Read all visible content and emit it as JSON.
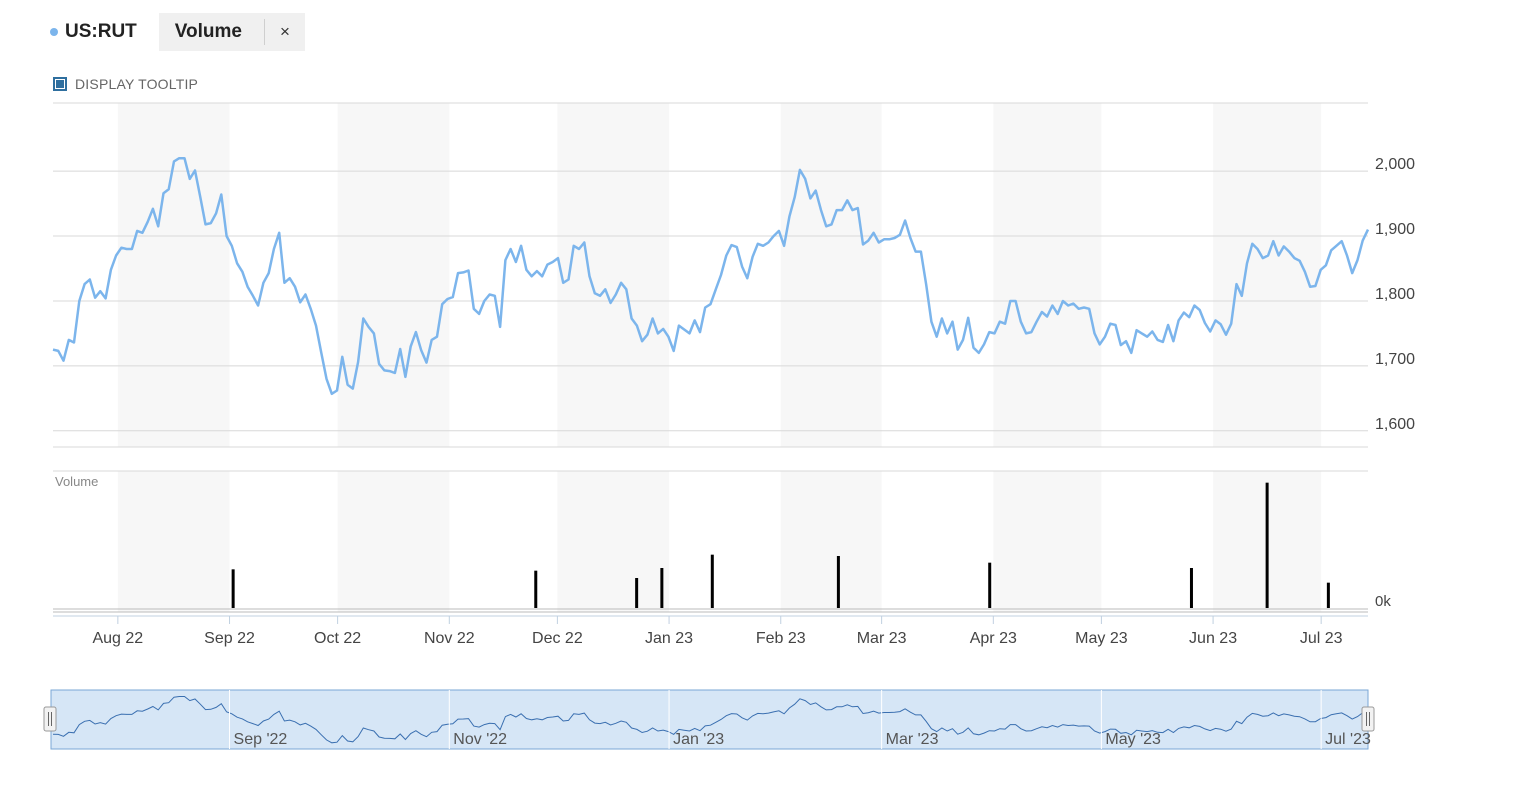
{
  "header": {
    "series_label": "US:RUT",
    "indicator_label": "Volume",
    "close_glyph": "×",
    "tooltip_label": "DISPLAY TOOLTIP",
    "tooltip_checked": true
  },
  "colors": {
    "price_line": "#7cb5ec",
    "volume_bar": "#000000",
    "band": "#f7f7f7",
    "gridline": "#d8d8d8",
    "navigator_fill": "#d6e6f6",
    "navigator_border": "#7aa7d6"
  },
  "chart_data": {
    "type": "line",
    "y_ticks": [
      "2,000",
      "1,900",
      "1,800",
      "1,700",
      "1,600"
    ],
    "y_tick_values": [
      2000,
      1900,
      1800,
      1700,
      1600
    ],
    "ylim": [
      1575,
      2105
    ],
    "x_ticks": [
      "Aug 22",
      "Sep 22",
      "Oct 22",
      "Nov 22",
      "Dec 22",
      "Jan 23",
      "Feb 23",
      "Mar 23",
      "Apr 23",
      "May 23",
      "Jun 23",
      "Jul 23"
    ],
    "x_range": [
      "2022-07-14",
      "2023-07-14"
    ],
    "series": [
      {
        "values": [
          1725,
          1723,
          1708,
          1740,
          1736,
          1800,
          1826,
          1833,
          1805,
          1815,
          1804,
          1848,
          1870,
          1882,
          1880,
          1880,
          1908,
          1905,
          1922,
          1942,
          1915,
          1966,
          1972,
          2015,
          2020,
          2020,
          1988,
          2001,
          1960,
          1918,
          1920,
          1935,
          1964,
          1900,
          1885,
          1858,
          1845,
          1822,
          1808,
          1793,
          1828,
          1843,
          1880,
          1905,
          1828,
          1835,
          1822,
          1798,
          1810,
          1788,
          1762,
          1720,
          1680,
          1657,
          1662,
          1714,
          1671,
          1665,
          1706,
          1773,
          1760,
          1750,
          1703,
          1693,
          1692,
          1689,
          1726,
          1683,
          1730,
          1752,
          1724,
          1705,
          1740,
          1745,
          1795,
          1803,
          1806,
          1843,
          1844,
          1847,
          1788,
          1780,
          1800,
          1810,
          1808,
          1760,
          1863,
          1880,
          1860,
          1885,
          1848,
          1838,
          1846,
          1838,
          1856,
          1860,
          1866,
          1828,
          1833,
          1885,
          1880,
          1890,
          1838,
          1812,
          1808,
          1818,
          1797,
          1810,
          1828,
          1818,
          1773,
          1762,
          1738,
          1748,
          1773,
          1750,
          1757,
          1745,
          1723,
          1762,
          1756,
          1750,
          1770,
          1752,
          1790,
          1795,
          1818,
          1840,
          1870,
          1886,
          1883,
          1853,
          1835,
          1868,
          1888,
          1885,
          1890,
          1900,
          1908,
          1885,
          1930,
          1960,
          2002,
          1988,
          1958,
          1970,
          1940,
          1915,
          1918,
          1940,
          1940,
          1955,
          1940,
          1943,
          1887,
          1893,
          1905,
          1890,
          1895,
          1895,
          1897,
          1902,
          1924,
          1897,
          1876,
          1876,
          1825,
          1768,
          1745,
          1773,
          1750,
          1768,
          1725,
          1740,
          1774,
          1728,
          1720,
          1733,
          1752,
          1750,
          1768,
          1765,
          1800,
          1800,
          1768,
          1750,
          1752,
          1768,
          1783,
          1776,
          1793,
          1780,
          1800,
          1793,
          1796,
          1788,
          1790,
          1788,
          1750,
          1733,
          1745,
          1765,
          1763,
          1732,
          1738,
          1720,
          1755,
          1750,
          1745,
          1753,
          1740,
          1737,
          1763,
          1738,
          1770,
          1782,
          1775,
          1793,
          1786,
          1766,
          1753,
          1770,
          1764,
          1748,
          1765,
          1826,
          1808,
          1858,
          1888,
          1880,
          1866,
          1870,
          1892,
          1870,
          1884,
          1876,
          1866,
          1862,
          1845,
          1822,
          1823,
          1848,
          1855,
          1878,
          1885,
          1892,
          1870,
          1843,
          1863,
          1893,
          1910
        ]
      }
    ],
    "volume": {
      "label": "Volume",
      "y_tick": "0k",
      "bars": [
        {
          "x": "2022-09-02",
          "value": 58
        },
        {
          "x": "2022-11-25",
          "value": 56
        },
        {
          "x": "2022-12-23",
          "value": 45
        },
        {
          "x": "2022-12-30",
          "value": 60
        },
        {
          "x": "2023-01-13",
          "value": 80
        },
        {
          "x": "2023-02-17",
          "value": 78
        },
        {
          "x": "2023-03-31",
          "value": 68
        },
        {
          "x": "2023-05-26",
          "value": 60
        },
        {
          "x": "2023-06-16",
          "value": 188
        },
        {
          "x": "2023-07-03",
          "value": 38
        }
      ]
    },
    "navigator": {
      "x_ticks": [
        "Sep '22",
        "Nov '22",
        "Jan '23",
        "Mar '23",
        "May '23",
        "Jul '23"
      ]
    },
    "grid": true,
    "legend": "top-left"
  }
}
